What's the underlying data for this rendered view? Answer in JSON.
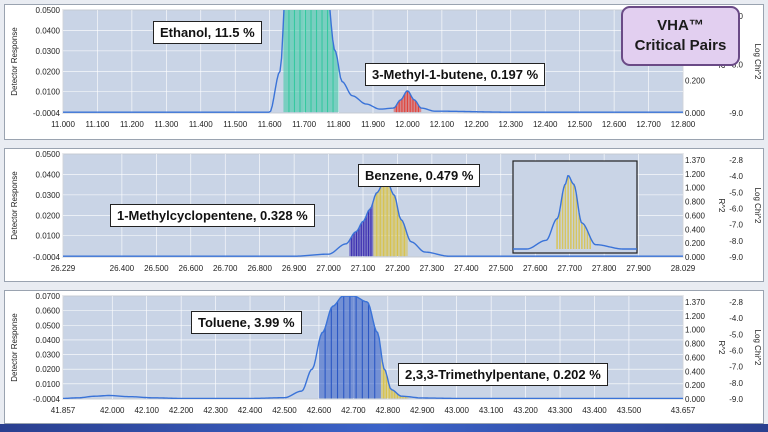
{
  "badge": {
    "line1": "VHA™",
    "line2": "Critical Pairs"
  },
  "axis_titles": {
    "left": "Detector Response",
    "right_r2": "R^2",
    "right_chi": "Log Chi^2"
  },
  "colors": {
    "trace": "#3a73d8",
    "ethanol": "#37c8a0",
    "methylbutene": "#e0443c",
    "benzene": "#d8c24a",
    "methylcyclopentene": "#3c2fb0",
    "toluene": "#2c58c4",
    "trimethylpentane": "#d8c24a"
  },
  "chart_data": [
    {
      "type": "line",
      "title": "",
      "xlabel": "",
      "ylabel": "Detector Response",
      "xlim": [
        11.0,
        12.8
      ],
      "ylim": [
        -0.0004,
        0.05
      ],
      "y_ticks": [
        "0.0500",
        "0.0400",
        "0.0300",
        "0.0200",
        "0.0100",
        "-0.0004"
      ],
      "y_tick_values": [
        0.05,
        0.04,
        0.03,
        0.02,
        0.01,
        -0.0004
      ],
      "x_ticks": [
        "11.000",
        "11.100",
        "11.200",
        "11.300",
        "11.400",
        "11.500",
        "11.600",
        "11.700",
        "11.800",
        "11.900",
        "12.000",
        "12.100",
        "12.200",
        "12.300",
        "12.400",
        "12.500",
        "12.600",
        "12.700",
        "12.800"
      ],
      "x_tick_values": [
        11.0,
        11.1,
        11.2,
        11.3,
        11.4,
        11.5,
        11.6,
        11.7,
        11.8,
        11.9,
        12.0,
        12.1,
        12.2,
        12.3,
        12.4,
        12.5,
        12.6,
        12.7,
        12.8
      ],
      "right_ticks": [
        "0.600",
        "0.400",
        "0.200",
        "0.000"
      ],
      "right_ticks_2": [
        "-7.0",
        "-8.0",
        "-9.0"
      ],
      "series": [
        {
          "x": [
            11.0,
            11.5,
            11.6,
            11.63,
            11.65,
            11.68,
            11.72,
            11.76,
            11.79,
            11.81,
            11.84,
            11.88,
            11.92,
            11.96,
            11.98,
            12.0,
            12.02,
            12.04,
            12.08,
            12.3,
            12.8
          ],
          "y": [
            0.0,
            0.0,
            0.0,
            0.02,
            0.07,
            0.09,
            0.09,
            0.07,
            0.03,
            0.015,
            0.008,
            0.004,
            0.0015,
            0.002,
            0.006,
            0.0105,
            0.006,
            0.002,
            0.0005,
            0.0,
            0.0
          ]
        }
      ],
      "peaks": [
        {
          "label": "Ethanol, 11.5 %",
          "x_range": [
            11.64,
            11.8
          ],
          "color_key": "ethanol"
        },
        {
          "label": "3-Methyl-1-butene, 0.197 %",
          "x_range": [
            11.96,
            12.04
          ],
          "color_key": "methylbutene"
        }
      ]
    },
    {
      "type": "line",
      "title": "",
      "xlabel": "",
      "ylabel": "Detector Response",
      "xlim": [
        26.229,
        28.029
      ],
      "ylim": [
        -0.0004,
        0.05
      ],
      "y_ticks": [
        "0.0500",
        "0.0400",
        "0.0300",
        "0.0200",
        "0.0100",
        "-0.0004"
      ],
      "y_tick_values": [
        0.05,
        0.04,
        0.03,
        0.02,
        0.01,
        -0.0004
      ],
      "x_ticks": [
        "26.229",
        "26.400",
        "26.500",
        "26.600",
        "26.700",
        "26.800",
        "26.900",
        "27.000",
        "27.100",
        "27.200",
        "27.300",
        "27.400",
        "27.500",
        "27.600",
        "27.700",
        "27.800",
        "27.900",
        "28.029"
      ],
      "x_tick_values": [
        26.229,
        26.4,
        26.5,
        26.6,
        26.7,
        26.8,
        26.9,
        27.0,
        27.1,
        27.2,
        27.3,
        27.4,
        27.5,
        27.6,
        27.7,
        27.8,
        27.9,
        28.029
      ],
      "right_ticks": [
        "1.370",
        "1.200",
        "1.000",
        "0.800",
        "0.600",
        "0.400",
        "0.200",
        "0.000"
      ],
      "right_ticks_2": [
        "-2.8",
        "-4.0",
        "-5.0",
        "-6.0",
        "-7.0",
        "-8.0",
        "-9.0"
      ],
      "series": [
        {
          "x": [
            26.229,
            26.9,
            27.0,
            27.05,
            27.08,
            27.1,
            27.12,
            27.14,
            27.16,
            27.17,
            27.19,
            27.21,
            27.24,
            27.28,
            27.35,
            28.029
          ],
          "y": [
            0.0,
            0.0,
            0.001,
            0.006,
            0.012,
            0.017,
            0.023,
            0.031,
            0.036,
            0.0365,
            0.03,
            0.018,
            0.007,
            0.002,
            0.0,
            0.0
          ]
        }
      ],
      "peaks": [
        {
          "label": "1-Methylcyclopentene, 0.328 %",
          "x_range": [
            27.06,
            27.13
          ],
          "color_key": "methylcyclopentene"
        },
        {
          "label": "Benzene, 0.479 %",
          "x_range": [
            27.13,
            27.23
          ],
          "color_key": "benzene"
        }
      ]
    },
    {
      "type": "line",
      "title": "",
      "xlabel": "",
      "ylabel": "Detector Response",
      "xlim": [
        41.857,
        43.657
      ],
      "ylim": [
        -0.0004,
        0.07
      ],
      "y_ticks": [
        "0.0700",
        "0.0600",
        "0.0500",
        "0.0400",
        "0.0300",
        "0.0200",
        "0.0100",
        "-0.0004"
      ],
      "y_tick_values": [
        0.07,
        0.06,
        0.05,
        0.04,
        0.03,
        0.02,
        0.01,
        -0.0004
      ],
      "x_ticks": [
        "41.857",
        "42.000",
        "42.100",
        "42.200",
        "42.300",
        "42.400",
        "42.500",
        "42.600",
        "42.700",
        "42.800",
        "42.900",
        "43.000",
        "43.100",
        "43.200",
        "43.300",
        "43.400",
        "43.500",
        "43.657"
      ],
      "x_tick_values": [
        41.857,
        42.0,
        42.1,
        42.2,
        42.3,
        42.4,
        42.5,
        42.6,
        42.7,
        42.8,
        42.9,
        43.0,
        43.1,
        43.2,
        43.3,
        43.4,
        43.5,
        43.657
      ],
      "right_ticks": [
        "1.370",
        "1.200",
        "1.000",
        "0.800",
        "0.600",
        "0.400",
        "0.200",
        "0.000"
      ],
      "right_ticks_2": [
        "-2.8",
        "-4.0",
        "-5.0",
        "-6.0",
        "-7.0",
        "-8.0",
        "-9.0"
      ],
      "series": [
        {
          "x": [
            41.857,
            41.9,
            41.95,
            41.99,
            42.05,
            42.12,
            42.2,
            42.3,
            42.4,
            42.5,
            42.55,
            42.58,
            42.61,
            42.64,
            42.67,
            42.7,
            42.74,
            42.77,
            42.79,
            42.81,
            42.84,
            42.9,
            43.0,
            43.657
          ],
          "y": [
            0.0,
            0.0004,
            0.0015,
            0.002,
            0.0012,
            0.0004,
            0.0,
            0.0,
            0.0,
            0.0005,
            0.005,
            0.02,
            0.045,
            0.063,
            0.07,
            0.07,
            0.066,
            0.045,
            0.02,
            0.006,
            0.0015,
            0.0003,
            0.0,
            0.0
          ]
        }
      ],
      "peaks": [
        {
          "label": "Toluene, 3.99 %",
          "x_range": [
            42.6,
            42.78
          ],
          "color_key": "toluene"
        },
        {
          "label": "2,3,3-Trimethylpentane, 0.202 %",
          "x_range": [
            42.78,
            42.86
          ],
          "color_key": "trimethylpentane"
        }
      ]
    }
  ],
  "inset": {
    "x": [
      27.55,
      27.62,
      27.66,
      27.69,
      27.7,
      27.72,
      27.75,
      27.8,
      27.9
    ],
    "y": [
      0.0,
      0.004,
      0.014,
      0.03,
      0.034,
      0.03,
      0.012,
      0.002,
      0.0
    ],
    "ylim": [
      0.0,
      0.037
    ],
    "xlim": [
      27.5,
      27.95
    ],
    "fill_range": [
      27.66,
      27.78
    ]
  }
}
